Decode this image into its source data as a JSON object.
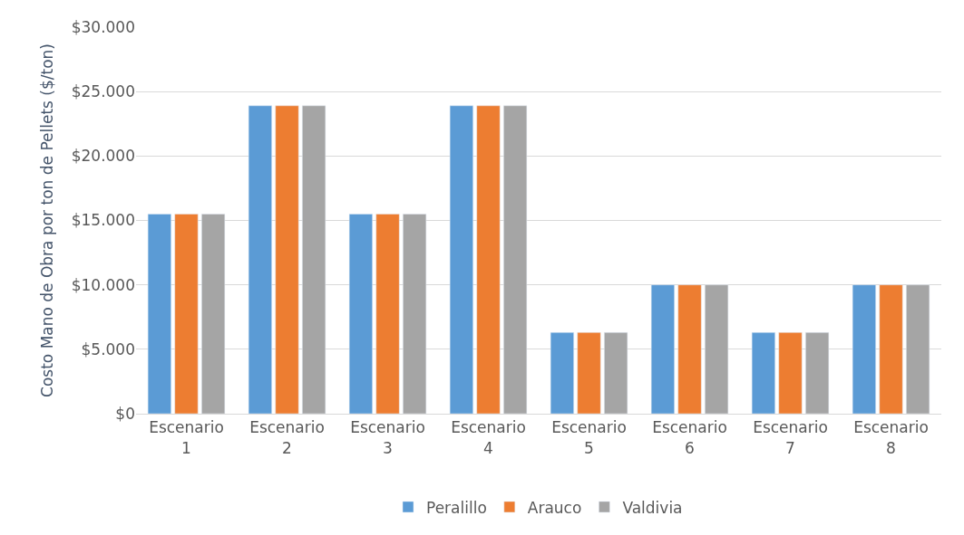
{
  "chart_data": {
    "type": "bar",
    "ylabel": "Costo Mano de Obra por ton de Pellets ($/ton)",
    "categories": [
      "Escenario 1",
      "Escenario 2",
      "Escenario 3",
      "Escenario 4",
      "Escenario 5",
      "Escenario 6",
      "Escenario 7",
      "Escenario 8"
    ],
    "series": [
      {
        "name": "Peralillo",
        "color": "#5b9bd5",
        "values": [
          15500,
          23900,
          15500,
          23900,
          6300,
          10000,
          6300,
          10000
        ]
      },
      {
        "name": "Arauco",
        "color": "#ed7d31",
        "values": [
          15500,
          23900,
          15500,
          23900,
          6300,
          10000,
          6300,
          10000
        ]
      },
      {
        "name": "Valdivia",
        "color": "#a5a5a5",
        "values": [
          15500,
          23900,
          15500,
          23900,
          6300,
          10000,
          6300,
          10000
        ]
      }
    ],
    "ylim": [
      0,
      30000
    ],
    "yticks": [
      {
        "value": 0,
        "label": "$0"
      },
      {
        "value": 5000,
        "label": "$5.000"
      },
      {
        "value": 10000,
        "label": "$10.000"
      },
      {
        "value": 15000,
        "label": "$15.000"
      },
      {
        "value": 20000,
        "label": "$20.000"
      },
      {
        "value": 25000,
        "label": "$25.000"
      },
      {
        "value": 30000,
        "label": "$30.000"
      }
    ],
    "grid": "y",
    "legend": "bottom"
  }
}
